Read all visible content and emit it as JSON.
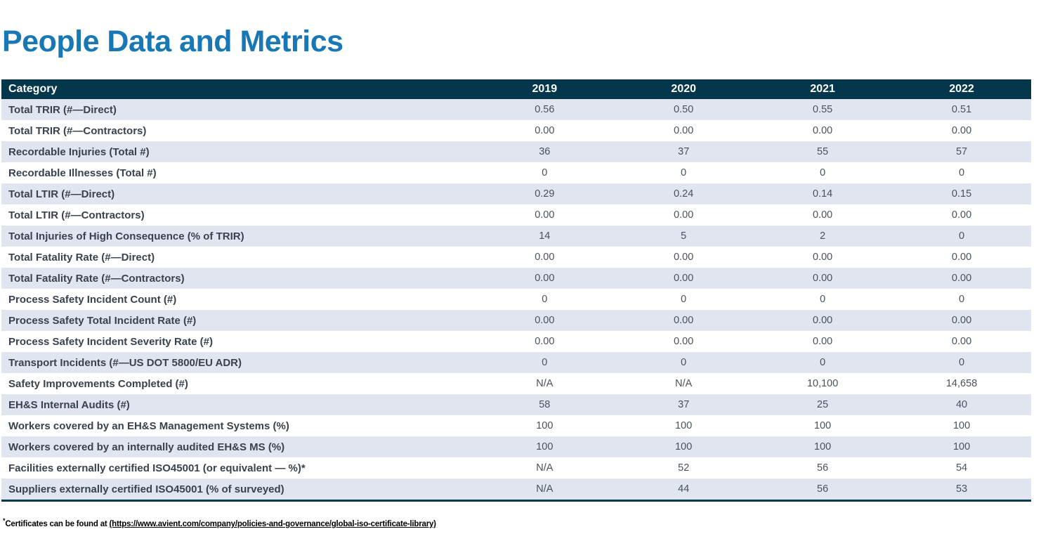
{
  "page_title": "People Data and Metrics",
  "colors": {
    "title_blue": "#1878b5",
    "header_background": "#04374c",
    "header_text": "#ffffff",
    "row_alternate_shade": "#e1e5f0",
    "body_text": "#38434d",
    "table_bottom_border": "#093a50"
  },
  "table": {
    "columns": [
      "Category",
      "2019",
      "2020",
      "2021",
      "2022"
    ],
    "rows": [
      {
        "category": "Total TRIR (#—Direct)",
        "values": [
          "0.56",
          "0.50",
          "0.55",
          "0.51"
        ]
      },
      {
        "category": "Total TRIR (#—Contractors)",
        "values": [
          "0.00",
          "0.00",
          "0.00",
          "0.00"
        ]
      },
      {
        "category": "Recordable Injuries (Total #)",
        "values": [
          "36",
          "37",
          "55",
          "57"
        ]
      },
      {
        "category": "Recordable Illnesses (Total #)",
        "values": [
          "0",
          "0",
          "0",
          "0"
        ]
      },
      {
        "category": "Total LTIR (#—Direct)",
        "values": [
          "0.29",
          "0.24",
          "0.14",
          "0.15"
        ]
      },
      {
        "category": "Total LTIR (#—Contractors)",
        "values": [
          "0.00",
          "0.00",
          "0.00",
          "0.00"
        ]
      },
      {
        "category": "Total Injuries of High Consequence (% of TRIR)",
        "values": [
          "14",
          "5",
          "2",
          "0"
        ]
      },
      {
        "category": "Total Fatality Rate (#—Direct)",
        "values": [
          "0.00",
          "0.00",
          "0.00",
          "0.00"
        ]
      },
      {
        "category": "Total Fatality Rate (#—Contractors)",
        "values": [
          "0.00",
          "0.00",
          "0.00",
          "0.00"
        ]
      },
      {
        "category": "Process Safety Incident Count (#)",
        "values": [
          "0",
          "0",
          "0",
          "0"
        ]
      },
      {
        "category": "Process Safety Total Incident Rate (#)",
        "values": [
          "0.00",
          "0.00",
          "0.00",
          "0.00"
        ]
      },
      {
        "category": "Process Safety Incident Severity Rate (#)",
        "values": [
          "0.00",
          "0.00",
          "0.00",
          "0.00"
        ]
      },
      {
        "category": "Transport Incidents (#—US DOT 5800/EU ADR)",
        "values": [
          "0",
          "0",
          "0",
          "0"
        ]
      },
      {
        "category": "Safety Improvements Completed (#)",
        "values": [
          "N/A",
          "N/A",
          "10,100",
          "14,658"
        ]
      },
      {
        "category": "EH&S Internal Audits (#)",
        "values": [
          "58",
          "37",
          "25",
          "40"
        ]
      },
      {
        "category": "Workers covered by an EH&S Management Systems (%)",
        "values": [
          "100",
          "100",
          "100",
          "100"
        ]
      },
      {
        "category": "Workers covered by an internally audited EH&S MS (%)",
        "values": [
          "100",
          "100",
          "100",
          "100"
        ]
      },
      {
        "category": "Facilities externally certified ISO45001 (or equivalent — %)*",
        "values": [
          "N/A",
          "52",
          "56",
          "54"
        ]
      },
      {
        "category": "Suppliers externally certified ISO45001 (% of surveyed)",
        "values": [
          "N/A",
          "44",
          "56",
          "53"
        ]
      }
    ]
  },
  "footnote": {
    "marker": "*",
    "text": "Certificates can be found at",
    "link_text": "(https://www.avient.com/company/policies-and-governance/global-iso-certificate-library)"
  }
}
